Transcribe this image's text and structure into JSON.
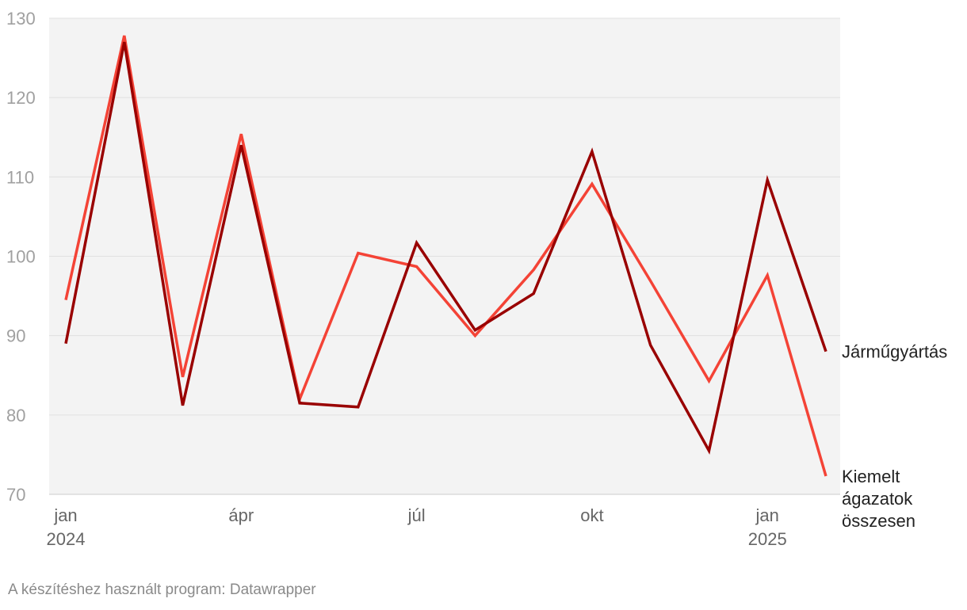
{
  "chart_data": {
    "type": "line",
    "title": "",
    "xlabel": "",
    "ylabel": "",
    "ylim": [
      70,
      130
    ],
    "yticks": [
      70,
      80,
      90,
      100,
      110,
      120,
      130
    ],
    "grid": true,
    "categories": [
      "2024-01",
      "2024-02",
      "2024-03",
      "2024-04",
      "2024-05",
      "2024-06",
      "2024-07",
      "2024-08",
      "2024-09",
      "2024-10",
      "2024-11",
      "2024-12",
      "2025-01",
      "2025-02"
    ],
    "xtick_labels": [
      {
        "index": 0,
        "line1": "jan",
        "line2": "2024"
      },
      {
        "index": 3,
        "line1": "ápr",
        "line2": ""
      },
      {
        "index": 6,
        "line1": "júl",
        "line2": ""
      },
      {
        "index": 9,
        "line1": "okt",
        "line2": ""
      },
      {
        "index": 12,
        "line1": "jan",
        "line2": "2025"
      }
    ],
    "series": [
      {
        "name": "Kiemelt ágazatok összesen",
        "label_lines": [
          "Kiemelt",
          "ágazatok",
          "összesen"
        ],
        "color": "#f44336",
        "values": [
          94.5,
          127.8,
          84.8,
          115.4,
          82.0,
          100.4,
          98.7,
          90.0,
          98.3,
          109.1,
          96.9,
          84.3,
          97.6,
          72.3
        ]
      },
      {
        "name": "Járműgyártás",
        "label_lines": [
          "Járműgyártás"
        ],
        "color": "#990000",
        "values": [
          89.0,
          127.0,
          81.2,
          114.0,
          81.5,
          81.0,
          101.7,
          90.7,
          95.3,
          113.2,
          88.8,
          75.5,
          109.6,
          88.0
        ]
      }
    ]
  },
  "footer": {
    "credit": "A készítéshez használt program: Datawrapper"
  }
}
